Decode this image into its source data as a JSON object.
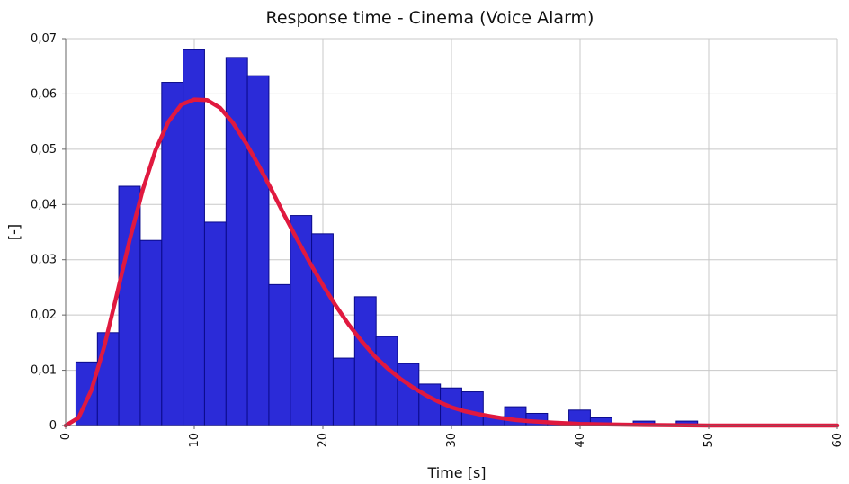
{
  "chart_data": {
    "type": "bar",
    "title": "Response time - Cinema (Voice Alarm)",
    "xlabel": "Time [s]",
    "ylabel": "[-]",
    "xlim": [
      0,
      60
    ],
    "ylim": [
      0,
      0.07
    ],
    "x_ticks": [
      {
        "value": 0,
        "label": "0"
      },
      {
        "value": 10,
        "label": "10"
      },
      {
        "value": 20,
        "label": "20"
      },
      {
        "value": 30,
        "label": "30"
      },
      {
        "value": 40,
        "label": "40"
      },
      {
        "value": 50,
        "label": "50"
      },
      {
        "value": 60,
        "label": "60"
      }
    ],
    "y_ticks": [
      {
        "value": 0,
        "label": "0"
      },
      {
        "value": 0.01,
        "label": "0,01"
      },
      {
        "value": 0.02,
        "label": "0,02"
      },
      {
        "value": 0.03,
        "label": "0,03"
      },
      {
        "value": 0.04,
        "label": "0,04"
      },
      {
        "value": 0.05,
        "label": "0,05"
      },
      {
        "value": 0.06,
        "label": "0,06"
      },
      {
        "value": 0.07,
        "label": "0,07"
      }
    ],
    "grid": true,
    "histogram": {
      "bin_width": 1.67,
      "bins": [
        {
          "x0": 0.8,
          "value": 0.0115
        },
        {
          "x0": 2.47,
          "value": 0.0168
        },
        {
          "x0": 4.13,
          "value": 0.0433
        },
        {
          "x0": 5.8,
          "value": 0.0335
        },
        {
          "x0": 7.47,
          "value": 0.0621
        },
        {
          "x0": 9.13,
          "value": 0.068
        },
        {
          "x0": 10.8,
          "value": 0.0368
        },
        {
          "x0": 12.47,
          "value": 0.0666
        },
        {
          "x0": 14.13,
          "value": 0.0633
        },
        {
          "x0": 15.8,
          "value": 0.0255
        },
        {
          "x0": 17.47,
          "value": 0.038
        },
        {
          "x0": 19.13,
          "value": 0.0347
        },
        {
          "x0": 20.8,
          "value": 0.0122
        },
        {
          "x0": 22.47,
          "value": 0.0233
        },
        {
          "x0": 24.13,
          "value": 0.0161
        },
        {
          "x0": 25.8,
          "value": 0.0112
        },
        {
          "x0": 27.47,
          "value": 0.0075
        },
        {
          "x0": 29.13,
          "value": 0.0068
        },
        {
          "x0": 30.8,
          "value": 0.0061
        },
        {
          "x0": 32.47,
          "value": 0.0016
        },
        {
          "x0": 34.13,
          "value": 0.0034
        },
        {
          "x0": 35.8,
          "value": 0.0022
        },
        {
          "x0": 37.47,
          "value": 0.0005
        },
        {
          "x0": 39.13,
          "value": 0.0028
        },
        {
          "x0": 40.8,
          "value": 0.0014
        },
        {
          "x0": 42.47,
          "value": 0.0004
        },
        {
          "x0": 44.13,
          "value": 0.0008
        },
        {
          "x0": 45.8,
          "value": 0.0
        },
        {
          "x0": 47.47,
          "value": 0.0008
        },
        {
          "x0": 49.13,
          "value": 0.0
        },
        {
          "x0": 50.8,
          "value": 0.0
        },
        {
          "x0": 52.47,
          "value": 0.0
        },
        {
          "x0": 54.13,
          "value": 0.0
        },
        {
          "x0": 55.8,
          "value": 0.0
        },
        {
          "x0": 57.47,
          "value": 0.0
        }
      ]
    },
    "fit_curve": {
      "points": [
        [
          0,
          0.0
        ],
        [
          1,
          0.0014
        ],
        [
          2,
          0.0064
        ],
        [
          3,
          0.0143
        ],
        [
          4,
          0.0239
        ],
        [
          5,
          0.0338
        ],
        [
          6,
          0.0427
        ],
        [
          7,
          0.0499
        ],
        [
          8,
          0.055
        ],
        [
          9,
          0.0581
        ],
        [
          10,
          0.059
        ],
        [
          11,
          0.0589
        ],
        [
          12,
          0.0575
        ],
        [
          13,
          0.0548
        ],
        [
          14,
          0.0512
        ],
        [
          15,
          0.0471
        ],
        [
          16,
          0.0427
        ],
        [
          17,
          0.0381
        ],
        [
          18,
          0.0337
        ],
        [
          19,
          0.0294
        ],
        [
          20,
          0.0254
        ],
        [
          21,
          0.0217
        ],
        [
          22,
          0.0183
        ],
        [
          23,
          0.0153
        ],
        [
          24,
          0.0126
        ],
        [
          25,
          0.0104
        ],
        [
          26,
          0.0085
        ],
        [
          27,
          0.0069
        ],
        [
          28,
          0.0055
        ],
        [
          29,
          0.0043
        ],
        [
          30,
          0.0033
        ],
        [
          31,
          0.0026
        ],
        [
          32,
          0.0021
        ],
        [
          33,
          0.0017
        ],
        [
          34,
          0.0013
        ],
        [
          35,
          0.001
        ],
        [
          36,
          0.0008
        ],
        [
          38,
          0.0005
        ],
        [
          40,
          0.0003
        ],
        [
          42,
          0.0002
        ],
        [
          45,
          0.0001
        ],
        [
          50,
          0.0
        ],
        [
          55,
          0.0
        ],
        [
          60,
          0.0
        ]
      ]
    },
    "colors": {
      "bar_fill": "#2b2bd8",
      "bar_edge": "#0a0a8a",
      "curve": "#e0193f",
      "grid": "#c8c8c8",
      "axis": "#666666",
      "background": "#ffffff"
    }
  }
}
